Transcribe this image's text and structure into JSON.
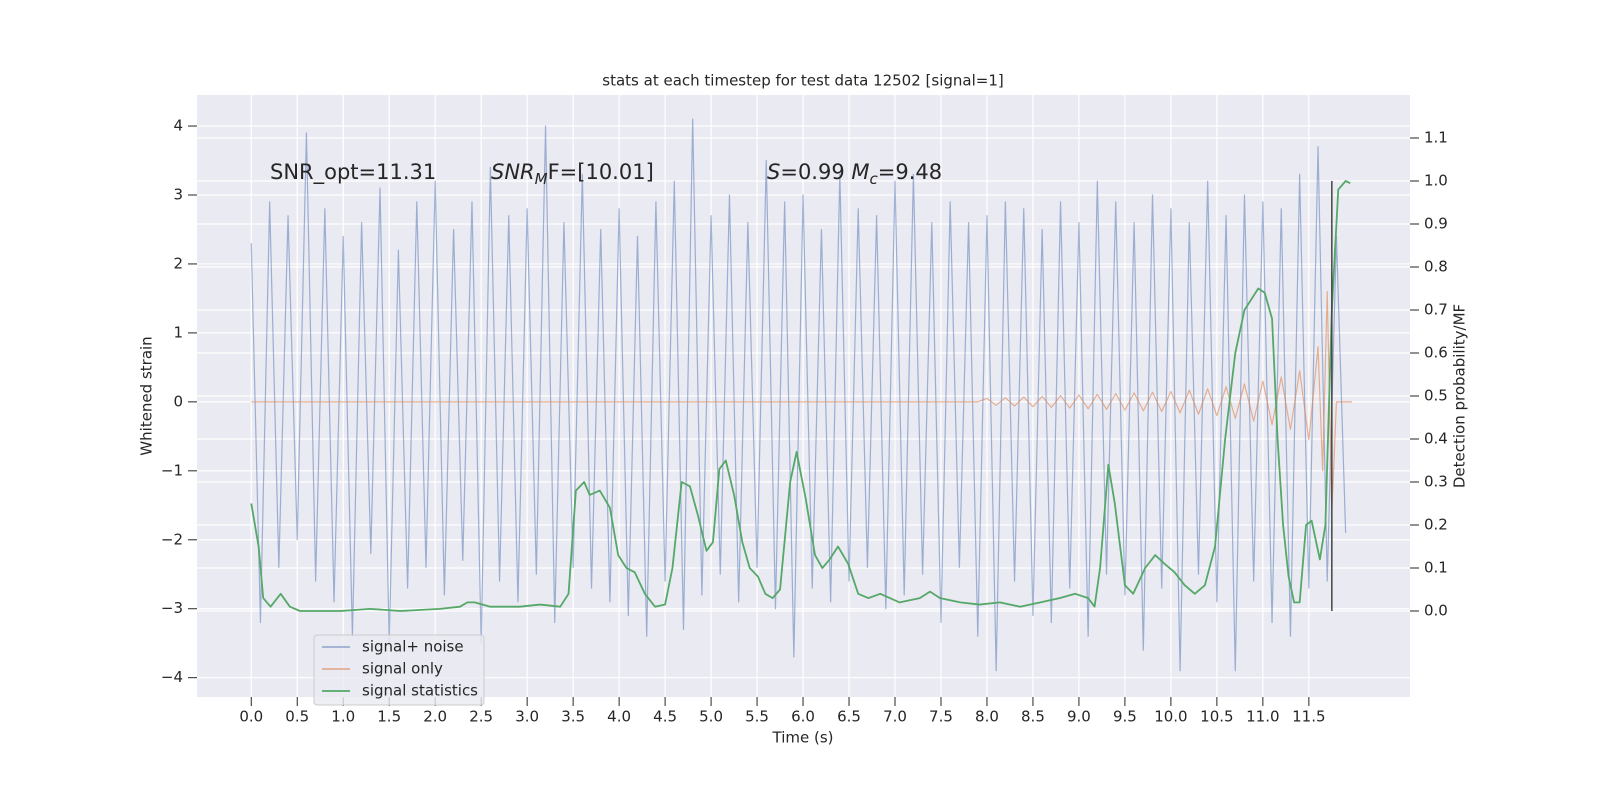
{
  "chart_data": {
    "type": "line",
    "title": "stats at each timestep for test data 12502 [signal=1]",
    "xlabel": "Time (s)",
    "ylabel": "Whitened strain",
    "y2label": "Detection probability/MF",
    "annotations": [
      [
        "SNR_opt=11.31"
      ],
      [
        "SNR",
        "M",
        "F=[10.01]"
      ],
      [
        "S",
        "=0.99   ",
        "M",
        "c",
        "=9.48"
      ]
    ],
    "xlim": [
      -0.59,
      12.6
    ],
    "ylim": [
      -4.28,
      4.45
    ],
    "y2lim": [
      -0.2,
      1.2
    ],
    "xticks": [
      {
        "value": 0,
        "label": "0.0"
      },
      0.5,
      {
        "value": 1,
        "label": "1.0"
      },
      1.5,
      {
        "value": 2,
        "label": "2.0"
      },
      2.5,
      {
        "value": 3,
        "label": "3.0"
      },
      3.5,
      {
        "value": 4,
        "label": "4.0"
      },
      4.5,
      {
        "value": 5,
        "label": "5.0"
      },
      5.5,
      {
        "value": 6,
        "label": "6.0"
      },
      6.5,
      {
        "value": 7,
        "label": "7.0"
      },
      7.5,
      {
        "value": 8,
        "label": "8.0"
      },
      8.5,
      {
        "value": 9,
        "label": "9.0"
      },
      9.5,
      {
        "value": 10,
        "label": "10.0"
      },
      10.5,
      {
        "value": 11,
        "label": "11.0"
      },
      11.5
    ],
    "yticks": [
      {
        "value": -4,
        "label": "−4"
      },
      {
        "value": -3,
        "label": "−3"
      },
      {
        "value": -2,
        "label": "−2"
      },
      {
        "value": -1,
        "label": "−1"
      },
      0,
      1,
      2,
      3,
      4
    ],
    "y2ticks": [
      {
        "value": 0,
        "label": "0.0"
      },
      0.1,
      0.2,
      0.3,
      0.4,
      0.5,
      0.6,
      0.7,
      0.8,
      0.9,
      {
        "value": 1,
        "label": "1.0"
      },
      1.1
    ],
    "grid": true,
    "legend": "lower left",
    "series": [
      {
        "name": "signal+ noise",
        "color": "#4c72b0",
        "x": [
          0.0,
          0.1,
          0.2,
          0.3,
          0.4,
          0.5,
          0.6,
          0.7,
          0.8,
          0.9,
          1.0,
          1.1,
          1.2,
          1.3,
          1.4,
          1.5,
          1.6,
          1.7,
          1.8,
          1.9,
          2.0,
          2.1,
          2.2,
          2.3,
          2.4,
          2.5,
          2.6,
          2.7,
          2.8,
          2.9,
          3.0,
          3.1,
          3.2,
          3.3,
          3.4,
          3.5,
          3.6,
          3.7,
          3.8,
          3.9,
          4.0,
          4.1,
          4.2,
          4.3,
          4.4,
          4.5,
          4.6,
          4.7,
          4.8,
          4.9,
          5.0,
          5.1,
          5.2,
          5.3,
          5.4,
          5.5,
          5.6,
          5.7,
          5.8,
          5.9,
          6.0,
          6.1,
          6.2,
          6.3,
          6.4,
          6.5,
          6.6,
          6.7,
          6.8,
          6.9,
          7.0,
          7.1,
          7.2,
          7.3,
          7.4,
          7.5,
          7.6,
          7.7,
          7.8,
          7.9,
          8.0,
          8.1,
          8.2,
          8.3,
          8.4,
          8.5,
          8.6,
          8.7,
          8.8,
          8.9,
          9.0,
          9.1,
          9.2,
          9.3,
          9.4,
          9.5,
          9.6,
          9.7,
          9.8,
          9.9,
          10.0,
          10.1,
          10.2,
          10.3,
          10.4,
          10.5,
          10.6,
          10.7,
          10.8,
          10.9,
          11.0,
          11.1,
          11.2,
          11.3,
          11.4,
          11.5,
          11.6,
          11.7,
          11.8,
          11.9
        ],
        "values": [
          2.3,
          -3.2,
          2.9,
          -2.4,
          2.7,
          -2.0,
          3.9,
          -2.6,
          2.8,
          -2.9,
          2.4,
          -3.4,
          2.6,
          -2.2,
          3.1,
          -3.5,
          2.2,
          -2.7,
          2.9,
          -2.4,
          3.2,
          -2.8,
          2.5,
          -2.3,
          2.9,
          -3.5,
          3.4,
          -2.6,
          2.7,
          -2.9,
          2.8,
          -2.5,
          4.0,
          -3.2,
          2.6,
          -2.4,
          3.3,
          -2.7,
          2.5,
          -2.9,
          2.8,
          -3.1,
          2.4,
          -3.4,
          2.9,
          -2.6,
          3.2,
          -3.3,
          4.1,
          -2.8,
          2.7,
          -2.5,
          3.0,
          -2.9,
          2.6,
          -2.4,
          3.5,
          -3.0,
          2.9,
          -3.7,
          3.0,
          -2.7,
          2.5,
          -2.9,
          3.3,
          -2.6,
          2.8,
          -2.4,
          2.7,
          -3.0,
          3.2,
          -2.8,
          3.3,
          -2.5,
          2.6,
          -3.2,
          2.9,
          -2.4,
          2.6,
          -3.4,
          2.7,
          -3.9,
          2.9,
          -2.6,
          2.8,
          -3.1,
          2.5,
          -3.2,
          2.9,
          -2.7,
          2.6,
          -3.4,
          3.2,
          -2.5,
          2.9,
          -2.8,
          2.6,
          -3.6,
          3.0,
          -2.7,
          2.8,
          -3.9,
          2.6,
          -2.5,
          3.2,
          -2.9,
          2.7,
          -3.9,
          3.0,
          -2.6,
          2.9,
          -3.2,
          2.8,
          -3.4,
          3.3,
          -2.7,
          3.7,
          -2.6,
          2.4,
          -1.9
        ]
      },
      {
        "name": "signal only",
        "color": "#dd8452",
        "x": [
          0.0,
          7.9,
          8.0,
          8.1,
          8.2,
          8.3,
          8.4,
          8.5,
          8.6,
          8.7,
          8.8,
          8.9,
          9.0,
          9.1,
          9.2,
          9.3,
          9.4,
          9.5,
          9.6,
          9.7,
          9.8,
          9.9,
          10.0,
          10.1,
          10.2,
          10.3,
          10.4,
          10.5,
          10.6,
          10.7,
          10.8,
          10.9,
          11.0,
          11.1,
          11.2,
          11.3,
          11.4,
          11.5,
          11.6,
          11.65,
          11.7,
          11.75,
          11.8,
          11.97
        ],
        "values": [
          0,
          0,
          0.05,
          -0.05,
          0.06,
          -0.06,
          0.07,
          -0.07,
          0.08,
          -0.08,
          0.09,
          -0.09,
          0.1,
          -0.1,
          0.11,
          -0.11,
          0.12,
          -0.12,
          0.13,
          -0.13,
          0.14,
          -0.14,
          0.15,
          -0.16,
          0.17,
          -0.18,
          0.19,
          -0.2,
          0.22,
          -0.24,
          0.26,
          -0.28,
          0.3,
          -0.33,
          0.36,
          -0.4,
          0.45,
          -0.55,
          0.8,
          -1.0,
          1.6,
          -1.6,
          0,
          0
        ]
      },
      {
        "name": "signal statistics",
        "color": "#55a868",
        "axis": "y2",
        "x": [
          0.0,
          0.08,
          0.13,
          0.21,
          0.32,
          0.42,
          0.53,
          0.97,
          1.29,
          1.62,
          2.05,
          2.27,
          2.35,
          2.43,
          2.6,
          2.92,
          3.14,
          3.36,
          3.45,
          3.53,
          3.62,
          3.68,
          3.79,
          3.9,
          3.99,
          4.08,
          4.17,
          4.28,
          4.39,
          4.5,
          4.58,
          4.68,
          4.77,
          4.86,
          4.95,
          5.02,
          5.09,
          5.16,
          5.25,
          5.34,
          5.42,
          5.51,
          5.59,
          5.67,
          5.75,
          5.86,
          5.93,
          6.03,
          6.13,
          6.21,
          6.29,
          6.38,
          6.49,
          6.6,
          6.71,
          6.84,
          7.05,
          7.27,
          7.38,
          7.49,
          7.71,
          7.92,
          8.14,
          8.36,
          8.58,
          8.79,
          8.96,
          9.1,
          9.17,
          9.23,
          9.32,
          9.39,
          9.5,
          9.59,
          9.72,
          9.83,
          9.93,
          10.04,
          10.15,
          10.26,
          10.37,
          10.48,
          10.59,
          10.7,
          10.8,
          10.95,
          11.02,
          11.1,
          11.16,
          11.22,
          11.28,
          11.34,
          11.4,
          11.47,
          11.53,
          11.62,
          11.68,
          11.75,
          11.82,
          11.9,
          11.95
        ],
        "values": [
          0.25,
          0.15,
          0.03,
          0.01,
          0.04,
          0.01,
          0.0,
          0.0,
          0.005,
          0.0,
          0.005,
          0.01,
          0.02,
          0.02,
          0.01,
          0.01,
          0.015,
          0.01,
          0.04,
          0.28,
          0.3,
          0.27,
          0.28,
          0.24,
          0.13,
          0.1,
          0.09,
          0.04,
          0.01,
          0.015,
          0.1,
          0.3,
          0.29,
          0.22,
          0.14,
          0.16,
          0.33,
          0.35,
          0.27,
          0.16,
          0.1,
          0.08,
          0.04,
          0.03,
          0.05,
          0.3,
          0.37,
          0.26,
          0.13,
          0.1,
          0.12,
          0.15,
          0.11,
          0.04,
          0.03,
          0.04,
          0.02,
          0.03,
          0.045,
          0.03,
          0.02,
          0.015,
          0.02,
          0.01,
          0.02,
          0.03,
          0.04,
          0.03,
          0.01,
          0.1,
          0.34,
          0.25,
          0.06,
          0.04,
          0.1,
          0.13,
          0.11,
          0.09,
          0.06,
          0.04,
          0.06,
          0.15,
          0.4,
          0.6,
          0.7,
          0.75,
          0.74,
          0.68,
          0.4,
          0.2,
          0.08,
          0.02,
          0.02,
          0.2,
          0.21,
          0.12,
          0.2,
          0.7,
          0.98,
          1.0,
          0.995
        ]
      }
    ],
    "marker_line": {
      "x": 11.75,
      "ymin": 0,
      "ymax": 1,
      "color": "#444444"
    }
  }
}
